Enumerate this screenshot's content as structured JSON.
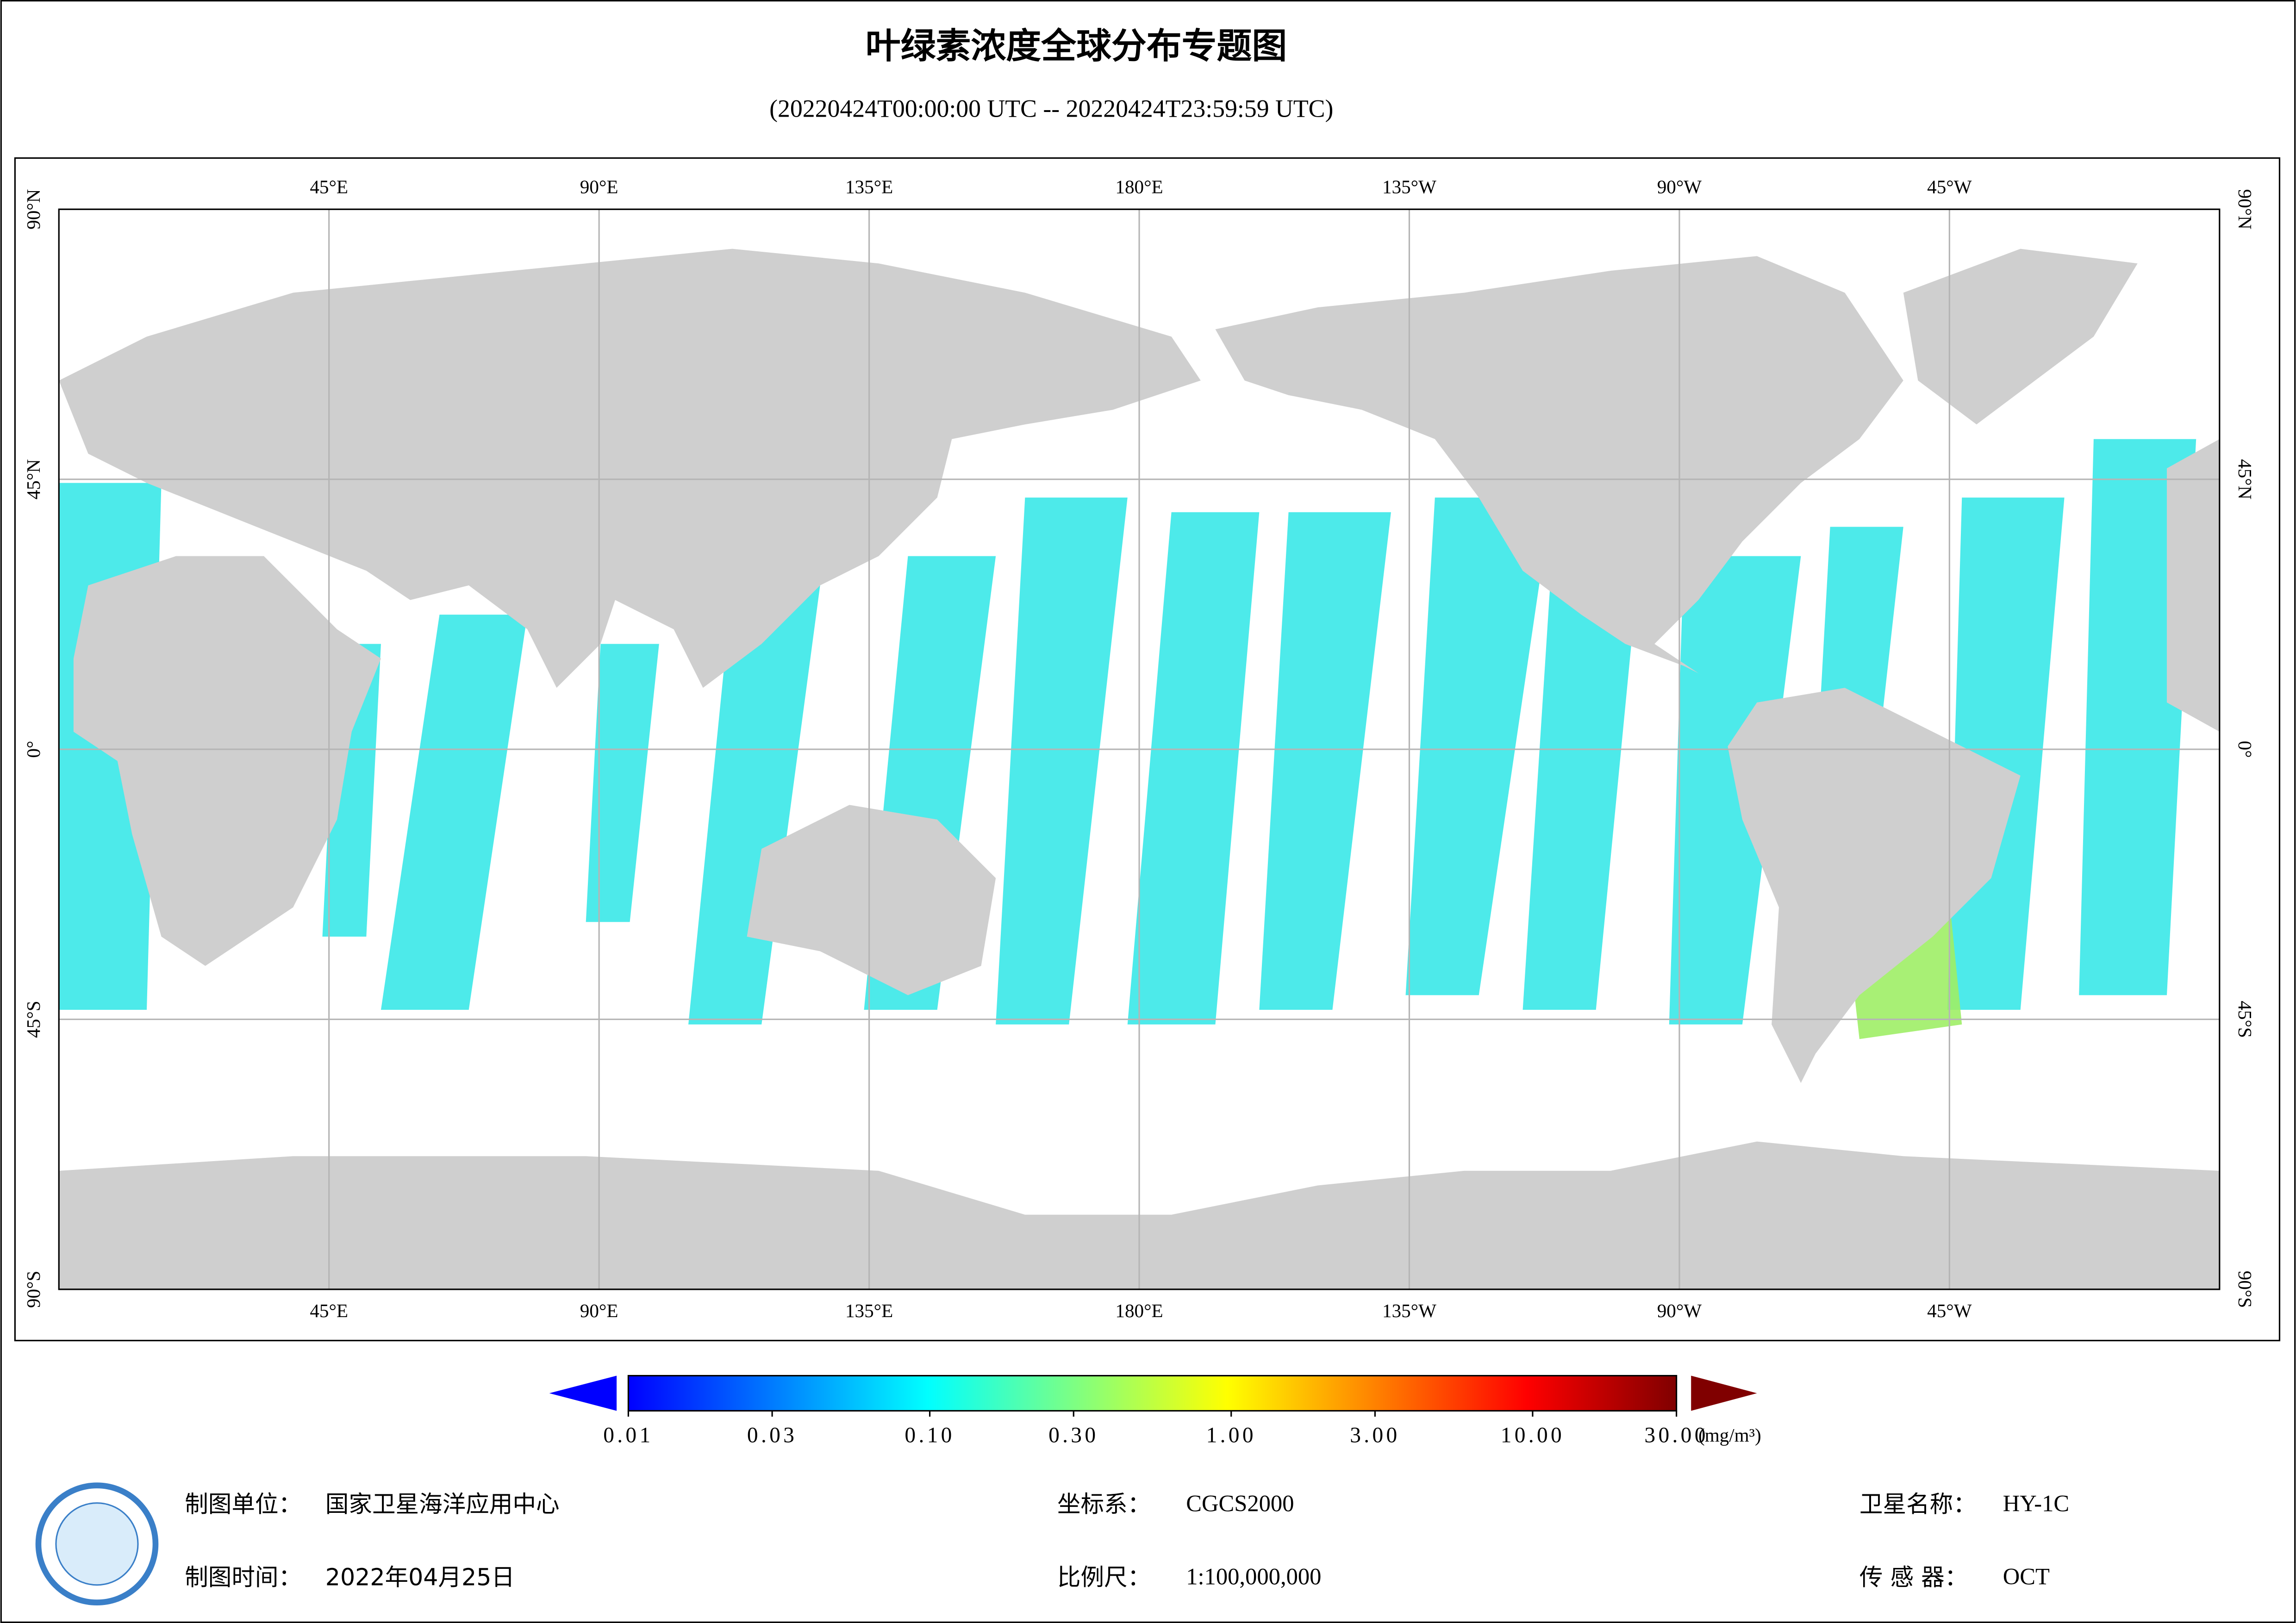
{
  "header": {
    "title": "叶绿素浓度全球分布专题图",
    "subtitle": "(20220424T00:00:00 UTC -- 20220424T23:59:59 UTC)"
  },
  "map": {
    "xlim": [
      0,
      360
    ],
    "ylim": [
      -90,
      90
    ],
    "lon_ticks": [
      {
        "value": 45,
        "label": "45°E"
      },
      {
        "value": 90,
        "label": "90°E"
      },
      {
        "value": 135,
        "label": "135°E"
      },
      {
        "value": 180,
        "label": "180°E"
      },
      {
        "value": 225,
        "label": "135°W"
      },
      {
        "value": 270,
        "label": "90°W"
      },
      {
        "value": 315,
        "label": "45°W"
      }
    ],
    "lat_ticks": [
      {
        "value": 90,
        "label": "90°N"
      },
      {
        "value": 45,
        "label": "45°N"
      },
      {
        "value": 0,
        "label": "0°"
      },
      {
        "value": -45,
        "label": "45°S"
      },
      {
        "value": -90,
        "label": "90°S"
      }
    ],
    "grid": true
  },
  "colorbar": {
    "scale": "log",
    "lim": [
      0.01,
      30
    ],
    "ticks": [
      0.01,
      0.03,
      {
        "value": 0.1,
        "label": "0.10"
      },
      {
        "value": 0.3,
        "label": "0.30"
      },
      {
        "value": 1,
        "label": "1.00"
      },
      {
        "value": 3,
        "label": "3.00"
      },
      {
        "value": 10,
        "label": "10.00"
      },
      {
        "value": 30,
        "label": "30.00"
      }
    ],
    "unit": "(mg/m³)",
    "colors": [
      "#0000ff",
      "#0080ff",
      "#00ffff",
      "#80ff80",
      "#ffff00",
      "#ff8000",
      "#ff0000",
      "#800000"
    ]
  },
  "footer": {
    "unit_label": "制图单位：",
    "unit_value": "国家卫星海洋应用中心",
    "time_label": "制图时间：",
    "time_value": "2022年04月25日",
    "crs_label": "坐标系：",
    "crs_value": "CGCS2000",
    "scale_label": "比例尺：",
    "scale_value": "1:100,000,000",
    "sat_label": "卫星名称：",
    "sat_value": "HY-1C",
    "sensor_label": "传 感 器：",
    "sensor_value": "OCT"
  }
}
